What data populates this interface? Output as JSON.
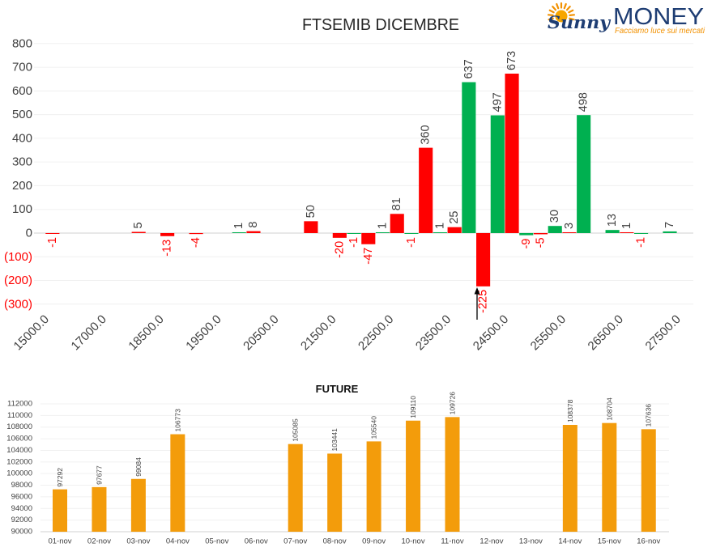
{
  "logo": {
    "brand_first": "Sunny",
    "brand_second": "MONEY",
    "tagline": "Facciamo luce sui mercati",
    "colors": {
      "navy": "#1e3d73",
      "orange": "#f29100",
      "sun": "#f7a600"
    }
  },
  "chart_data": [
    {
      "type": "bar",
      "title": "FTSEMIB DICEMBRE",
      "categories": [
        "15000.0",
        "",
        "17000.0",
        "",
        "18500.0",
        "",
        "19500.0",
        "",
        "20500.0",
        "",
        "21500.0",
        "",
        "22500.0",
        "",
        "23500.0",
        "",
        "24500.0",
        "",
        "25500.0",
        "",
        "26500.0",
        "",
        "27500.0"
      ],
      "series": [
        {
          "color": "#00b050",
          "values": [
            null,
            null,
            null,
            null,
            null,
            null,
            null,
            1,
            null,
            null,
            null,
            -1,
            1,
            -1,
            1,
            637,
            497,
            -9,
            30,
            498,
            13,
            -1,
            7
          ]
        },
        {
          "color": "#ff0000",
          "values": [
            -1,
            null,
            null,
            5,
            -13,
            -4,
            null,
            8,
            null,
            50,
            -20,
            -47,
            81,
            360,
            25,
            -225,
            673,
            -5,
            3,
            null,
            1,
            null,
            null
          ]
        }
      ],
      "ylim": [
        -300,
        800
      ],
      "yticks": [
        800,
        700,
        600,
        500,
        400,
        300,
        200,
        100,
        0,
        -100,
        -200,
        -300
      ],
      "ytick_labels": [
        "800",
        "700",
        "600",
        "500",
        "400",
        "300",
        "200",
        "100",
        "0",
        "(100)",
        "(200)",
        "(300)"
      ],
      "label_colors": {
        "positive": "#404040",
        "negative": "#ff0000"
      },
      "grid": true,
      "legend": "none"
    },
    {
      "type": "bar",
      "title": "FUTURE",
      "categories": [
        "01-nov",
        "02-nov",
        "03-nov",
        "04-nov",
        "05-nov",
        "06-nov",
        "07-nov",
        "08-nov",
        "09-nov",
        "10-nov",
        "11-nov",
        "12-nov",
        "13-nov",
        "14-nov",
        "15-nov",
        "16-nov"
      ],
      "values": [
        97292,
        97677,
        99084,
        106773,
        null,
        null,
        105085,
        103441,
        105540,
        109110,
        109726,
        null,
        null,
        108378,
        108704,
        107636
      ],
      "ylim": [
        90000,
        112000
      ],
      "yticks": [
        112000,
        110000,
        108000,
        106000,
        104000,
        102000,
        100000,
        98000,
        96000,
        94000,
        92000,
        90000
      ],
      "color": "#f39c0b",
      "grid": true,
      "legend": "none"
    }
  ]
}
